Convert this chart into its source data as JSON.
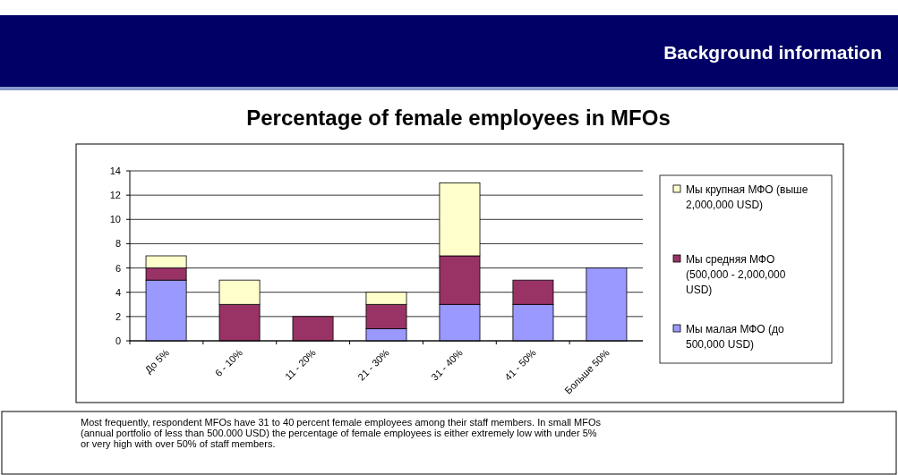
{
  "chart_data": {
    "type": "bar",
    "title": "Percentage of female employees in MFOs",
    "subtitle": "Background information",
    "categories": [
      "До 5%",
      "6 - 10%",
      "11 - 20%",
      "21 - 30%",
      "31 - 40%",
      "41 - 50%",
      "Больше 50%"
    ],
    "stacked": true,
    "series": [
      {
        "name": "Мы малая МФО (до 500,000 USD)",
        "color": "#9999ff",
        "values": [
          5,
          0,
          0,
          1,
          3,
          3,
          6
        ]
      },
      {
        "name": "Мы средняя МФО (500,000 - 2,000,000 USD)",
        "color": "#993366",
        "values": [
          1,
          3,
          2,
          2,
          4,
          2,
          0
        ]
      },
      {
        "name": "Мы крупная МФО (выше 2,000,000 USD)",
        "color": "#ffffcc",
        "values": [
          1,
          2,
          0,
          1,
          6,
          0,
          0
        ]
      }
    ],
    "ylim": [
      0,
      14
    ],
    "yticks": [
      0,
      2,
      4,
      6,
      8,
      10,
      12,
      14
    ],
    "grid": "y",
    "legend": "right",
    "annotations": [
      "Most frequently, respondent MFOs have 31 to 40 percent female employees among their staff members. In small MFOs (annual portfolio of less than 500.000 USD) the percentage of female employees is either extremely low with under 5% or very high with over 50% of staff members."
    ]
  }
}
